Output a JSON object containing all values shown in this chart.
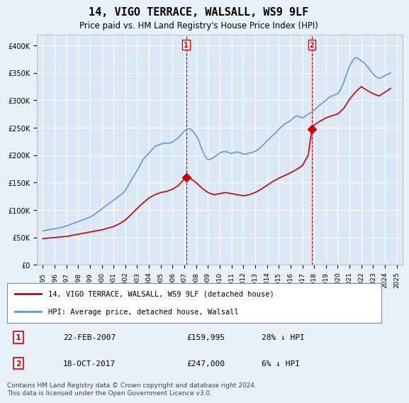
{
  "title": "14, VIGO TERRACE, WALSALL, WS9 9LF",
  "subtitle": "Price paid vs. HM Land Registry's House Price Index (HPI)",
  "background_color": "#e8f0f8",
  "plot_bg_color": "#dce8f5",
  "legend_line1": "14, VIGO TERRACE, WALSALL, WS9 9LF (detached house)",
  "legend_line2": "HPI: Average price, detached house, Walsall",
  "footer": "Contains HM Land Registry data © Crown copyright and database right 2024.\nThis data is licensed under the Open Government Licence v3.0.",
  "sale1_label": "1",
  "sale1_date": "22-FEB-2007",
  "sale1_price": "£159,995",
  "sale1_hpi": "28% ↓ HPI",
  "sale2_label": "2",
  "sale2_date": "18-OCT-2017",
  "sale2_price": "£247,000",
  "sale2_hpi": "6% ↓ HPI",
  "property_color": "#cc0000",
  "hpi_color": "#6699cc",
  "vline_color": "#cc0000",
  "marker1_x": 2007.15,
  "marker1_y": 159995,
  "marker2_x": 2017.8,
  "marker2_y": 247000,
  "ylim": [
    0,
    420000
  ],
  "xlim_start": 1994.5,
  "xlim_end": 2025.5,
  "yticks": [
    0,
    50000,
    100000,
    150000,
    200000,
    250000,
    300000,
    350000,
    400000
  ],
  "xticks": [
    1995,
    1996,
    1997,
    1998,
    1999,
    2000,
    2001,
    2002,
    2003,
    2004,
    2005,
    2006,
    2007,
    2008,
    2009,
    2010,
    2011,
    2012,
    2013,
    2014,
    2015,
    2016,
    2017,
    2018,
    2019,
    2020,
    2021,
    2022,
    2023,
    2024,
    2025
  ],
  "hpi_data_x": [
    1995.0,
    1995.25,
    1995.5,
    1995.75,
    1996.0,
    1996.25,
    1996.5,
    1996.75,
    1997.0,
    1997.25,
    1997.5,
    1997.75,
    1998.0,
    1998.25,
    1998.5,
    1998.75,
    1999.0,
    1999.25,
    1999.5,
    1999.75,
    2000.0,
    2000.25,
    2000.5,
    2000.75,
    2001.0,
    2001.25,
    2001.5,
    2001.75,
    2002.0,
    2002.25,
    2002.5,
    2002.75,
    2003.0,
    2003.25,
    2003.5,
    2003.75,
    2004.0,
    2004.25,
    2004.5,
    2004.75,
    2005.0,
    2005.25,
    2005.5,
    2005.75,
    2006.0,
    2006.25,
    2006.5,
    2006.75,
    2007.0,
    2007.25,
    2007.5,
    2007.75,
    2008.0,
    2008.25,
    2008.5,
    2008.75,
    2009.0,
    2009.25,
    2009.5,
    2009.75,
    2010.0,
    2010.25,
    2010.5,
    2010.75,
    2011.0,
    2011.25,
    2011.5,
    2011.75,
    2012.0,
    2012.25,
    2012.5,
    2012.75,
    2013.0,
    2013.25,
    2013.5,
    2013.75,
    2014.0,
    2014.25,
    2014.5,
    2014.75,
    2015.0,
    2015.25,
    2015.5,
    2015.75,
    2016.0,
    2016.25,
    2016.5,
    2016.75,
    2017.0,
    2017.25,
    2017.5,
    2017.75,
    2018.0,
    2018.25,
    2018.5,
    2018.75,
    2019.0,
    2019.25,
    2019.5,
    2019.75,
    2020.0,
    2020.25,
    2020.5,
    2020.75,
    2021.0,
    2021.25,
    2021.5,
    2021.75,
    2022.0,
    2022.25,
    2022.5,
    2022.75,
    2023.0,
    2023.25,
    2023.5,
    2023.75,
    2024.0,
    2024.25,
    2024.5
  ],
  "hpi_data_y": [
    62000,
    63000,
    64000,
    65000,
    66000,
    67000,
    68000,
    69500,
    71000,
    73000,
    75000,
    77000,
    79000,
    81000,
    83000,
    85000,
    87000,
    90000,
    94000,
    98000,
    102000,
    106000,
    110000,
    114000,
    118000,
    122000,
    126000,
    130000,
    136000,
    145000,
    155000,
    163000,
    172000,
    182000,
    192000,
    198000,
    204000,
    210000,
    216000,
    218000,
    220000,
    222000,
    222000,
    222000,
    224000,
    228000,
    232000,
    238000,
    244000,
    248000,
    248000,
    243000,
    236000,
    225000,
    210000,
    198000,
    192000,
    193000,
    196000,
    200000,
    204000,
    206000,
    207000,
    205000,
    203000,
    205000,
    206000,
    204000,
    202000,
    202000,
    204000,
    205000,
    207000,
    210000,
    215000,
    220000,
    226000,
    231000,
    236000,
    241000,
    247000,
    252000,
    257000,
    260000,
    263000,
    268000,
    272000,
    270000,
    268000,
    271000,
    275000,
    278000,
    282000,
    287000,
    292000,
    296000,
    300000,
    305000,
    308000,
    310000,
    312000,
    320000,
    332000,
    348000,
    362000,
    372000,
    378000,
    376000,
    372000,
    368000,
    362000,
    355000,
    348000,
    343000,
    340000,
    342000,
    345000,
    348000,
    350000
  ],
  "property_data_x": [
    1995.0,
    1995.5,
    1996.0,
    1996.5,
    1997.0,
    1997.5,
    1998.0,
    1998.5,
    1999.0,
    1999.5,
    2000.0,
    2000.5,
    2001.0,
    2001.5,
    2002.0,
    2002.5,
    2003.0,
    2003.5,
    2004.0,
    2004.5,
    2005.0,
    2005.5,
    2006.0,
    2006.5,
    2007.15,
    2007.5,
    2008.0,
    2008.5,
    2009.0,
    2009.5,
    2010.0,
    2010.5,
    2011.0,
    2011.5,
    2012.0,
    2012.5,
    2013.0,
    2013.5,
    2014.0,
    2014.5,
    2015.0,
    2015.5,
    2016.0,
    2016.5,
    2017.0,
    2017.5,
    2017.8,
    2018.0,
    2018.5,
    2019.0,
    2019.5,
    2020.0,
    2020.5,
    2021.0,
    2021.5,
    2022.0,
    2022.5,
    2023.0,
    2023.5,
    2024.0,
    2024.5
  ],
  "property_data_y": [
    48000,
    49000,
    50000,
    51000,
    52000,
    54000,
    56000,
    58000,
    60000,
    62000,
    64000,
    67000,
    70000,
    75000,
    82000,
    92000,
    103000,
    113000,
    122000,
    128000,
    132000,
    134000,
    138000,
    145000,
    159995,
    158000,
    150000,
    140000,
    132000,
    128000,
    130000,
    132000,
    130000,
    128000,
    126000,
    128000,
    132000,
    138000,
    145000,
    152000,
    158000,
    163000,
    168000,
    174000,
    181000,
    200000,
    247000,
    255000,
    262000,
    268000,
    272000,
    275000,
    285000,
    302000,
    315000,
    325000,
    318000,
    312000,
    308000,
    315000,
    322000
  ]
}
